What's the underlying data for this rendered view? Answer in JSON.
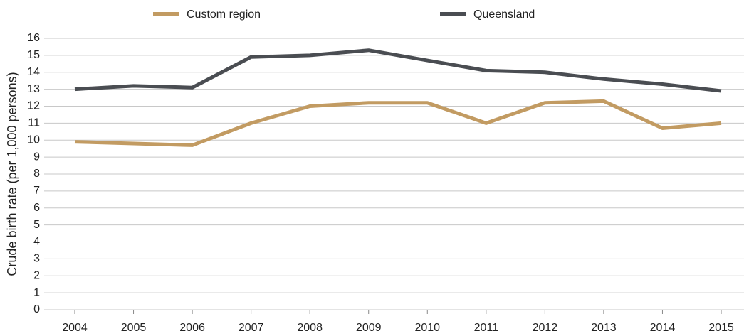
{
  "chart_data": {
    "type": "line",
    "categories": [
      "2004",
      "2005",
      "2006",
      "2007",
      "2008",
      "2009",
      "2010",
      "2011",
      "2012",
      "2013",
      "2014",
      "2015"
    ],
    "series": [
      {
        "name": "Custom region",
        "color": "#c29b62",
        "values": [
          9.9,
          9.8,
          9.7,
          11.0,
          12.0,
          12.2,
          12.2,
          11.0,
          12.2,
          12.3,
          10.7,
          11.0
        ]
      },
      {
        "name": "Queensland",
        "color": "#4a4d52",
        "values": [
          13.0,
          13.2,
          13.1,
          14.9,
          15.0,
          15.3,
          14.7,
          14.1,
          14.0,
          13.6,
          13.3,
          12.9
        ]
      }
    ],
    "y_label": "Crude birth rate (per 1,000 persons)",
    "ylim": [
      0,
      16
    ],
    "yticks": [
      0,
      1,
      2,
      3,
      4,
      5,
      6,
      7,
      8,
      9,
      10,
      11,
      12,
      13,
      14,
      15,
      16
    ],
    "grid": true,
    "legend": "top"
  }
}
